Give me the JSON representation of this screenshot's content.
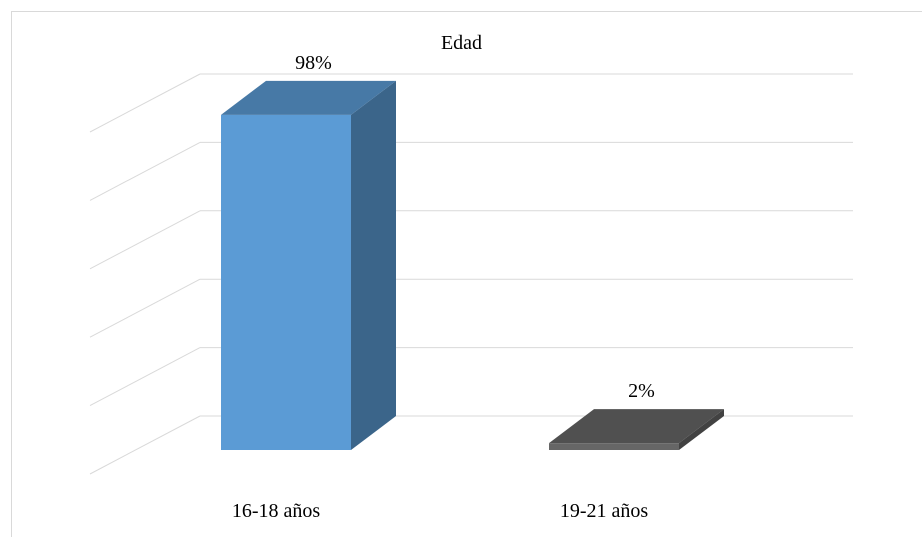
{
  "chart_data": {
    "type": "bar",
    "style": "3d-column",
    "title": "Edad",
    "categories": [
      "16-18 años",
      "19-21 años"
    ],
    "series": [
      {
        "values": [
          98,
          2
        ],
        "colors": [
          "#5b9bd5",
          "#666666"
        ]
      }
    ],
    "data_labels": [
      "98%",
      "2%"
    ],
    "ylim": [
      0,
      100
    ],
    "unit": "%",
    "grid": true,
    "legend": "none",
    "axis_labels_visible": false
  }
}
